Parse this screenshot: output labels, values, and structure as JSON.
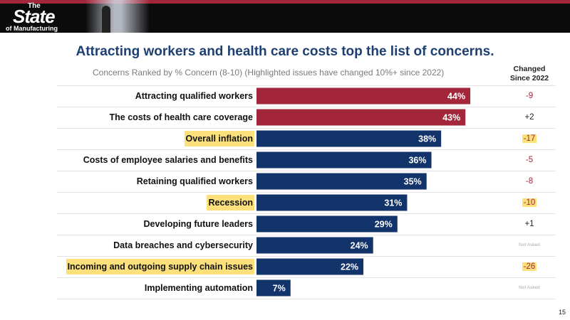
{
  "header": {
    "logo_the": "The",
    "logo_state": "State",
    "logo_manufacturing": "of Manufacturing"
  },
  "title": "Attracting workers and health care costs top the list of concerns.",
  "subtitle": "Concerns Ranked by % Concern (8-10) (Highlighted issues have changed 10%+ since 2022)",
  "changed_header_line1": "Changed",
  "changed_header_line2": "Since 2022",
  "page_number": "15",
  "colors": {
    "accent_red": "#a3263a",
    "navy": "#13336b",
    "highlight": "#fbe07c",
    "title": "#1d3f72"
  },
  "chart_data": {
    "type": "bar",
    "orientation": "horizontal",
    "categories": [
      "Attracting qualified workers",
      "The costs of health care coverage",
      "Overall inflation",
      "Costs of employee salaries and benefits",
      "Retaining qualified workers",
      "Recession",
      "Developing future leaders",
      "Data breaches and cybersecurity",
      "Incoming and outgoing supply chain issues",
      "Implementing automation"
    ],
    "values": [
      44,
      43,
      38,
      36,
      35,
      31,
      29,
      24,
      22,
      7
    ],
    "value_labels": [
      "44%",
      "43%",
      "38%",
      "36%",
      "35%",
      "31%",
      "29%",
      "24%",
      "22%",
      "7%"
    ],
    "bar_colors": [
      "#a3263a",
      "#a3263a",
      "#13336b",
      "#13336b",
      "#13336b",
      "#13336b",
      "#13336b",
      "#13336b",
      "#13336b",
      "#13336b"
    ],
    "highlighted": [
      false,
      false,
      true,
      false,
      false,
      true,
      false,
      false,
      true,
      false
    ],
    "changed_since_2022": [
      "-9",
      "+2",
      "-17",
      "-5",
      "-8",
      "-10",
      "+1",
      "Not Asked",
      "-26",
      "Not Asked"
    ],
    "xlim": [
      0,
      100
    ],
    "grid": false,
    "legend": "none"
  }
}
